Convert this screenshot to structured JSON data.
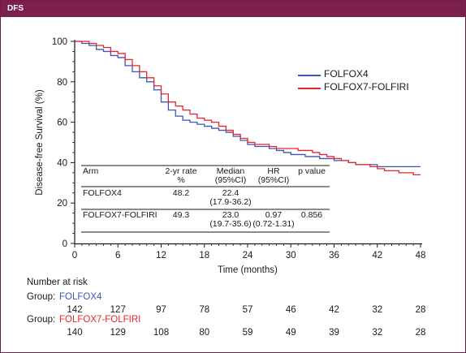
{
  "header": {
    "title": "DFS"
  },
  "colors": {
    "folfox4": "#3e55b8",
    "folfox7": "#e8252c",
    "header_bg": "#7b1f4c",
    "axis": "#1a1a1a"
  },
  "chart_data": {
    "type": "line",
    "subtype": "kaplan-meier step",
    "xlabel": "Time (months)",
    "ylabel": "Disease-free Survival (%)",
    "xlim": [
      0,
      48
    ],
    "ylim": [
      0,
      100
    ],
    "xticks": [
      "0",
      "6",
      "12",
      "18",
      "24",
      "30",
      "36",
      "42",
      "48"
    ],
    "yticks": [
      "0",
      "20",
      "40",
      "60",
      "80",
      "100"
    ],
    "legend_position": "top-right",
    "grid": false,
    "series": [
      {
        "name": "FOLFOX4",
        "color": "#3e55b8",
        "points": [
          [
            0,
            100
          ],
          [
            1,
            99
          ],
          [
            2,
            98
          ],
          [
            3,
            96
          ],
          [
            4,
            95
          ],
          [
            5,
            93
          ],
          [
            6,
            92
          ],
          [
            7,
            88
          ],
          [
            8,
            85
          ],
          [
            9,
            82
          ],
          [
            10,
            80
          ],
          [
            11,
            76
          ],
          [
            12,
            70
          ],
          [
            13,
            66
          ],
          [
            14,
            63
          ],
          [
            15,
            61
          ],
          [
            16,
            60
          ],
          [
            17,
            59
          ],
          [
            18,
            58
          ],
          [
            19,
            57
          ],
          [
            20,
            56
          ],
          [
            21,
            55
          ],
          [
            22,
            53
          ],
          [
            23,
            51
          ],
          [
            24,
            49
          ],
          [
            25,
            48
          ],
          [
            26,
            48
          ],
          [
            27,
            47
          ],
          [
            28,
            46
          ],
          [
            29,
            45
          ],
          [
            30,
            44
          ],
          [
            31,
            44
          ],
          [
            32,
            43
          ],
          [
            33,
            43
          ],
          [
            34,
            42
          ],
          [
            35,
            42
          ],
          [
            36,
            41
          ],
          [
            37,
            41
          ],
          [
            38,
            40
          ],
          [
            39,
            39
          ],
          [
            40,
            39
          ],
          [
            41,
            39
          ],
          [
            42,
            38
          ],
          [
            43,
            38
          ],
          [
            44,
            38
          ],
          [
            45,
            38
          ],
          [
            46,
            38
          ],
          [
            47,
            38
          ],
          [
            48,
            38
          ]
        ]
      },
      {
        "name": "FOLFOX7-FOLFIRI",
        "color": "#e8252c",
        "points": [
          [
            0,
            100
          ],
          [
            1,
            100
          ],
          [
            2,
            99
          ],
          [
            3,
            98
          ],
          [
            4,
            97
          ],
          [
            5,
            95
          ],
          [
            6,
            94
          ],
          [
            7,
            91
          ],
          [
            8,
            88
          ],
          [
            9,
            85
          ],
          [
            10,
            82
          ],
          [
            11,
            78
          ],
          [
            12,
            74
          ],
          [
            13,
            70
          ],
          [
            14,
            68
          ],
          [
            15,
            66
          ],
          [
            16,
            64
          ],
          [
            17,
            62
          ],
          [
            18,
            61
          ],
          [
            19,
            60
          ],
          [
            20,
            58
          ],
          [
            21,
            56
          ],
          [
            22,
            54
          ],
          [
            23,
            52
          ],
          [
            24,
            50
          ],
          [
            25,
            49
          ],
          [
            26,
            49
          ],
          [
            27,
            48
          ],
          [
            28,
            47
          ],
          [
            29,
            47
          ],
          [
            30,
            47
          ],
          [
            31,
            46
          ],
          [
            32,
            46
          ],
          [
            33,
            45
          ],
          [
            34,
            44
          ],
          [
            35,
            43
          ],
          [
            36,
            42
          ],
          [
            37,
            41
          ],
          [
            38,
            40
          ],
          [
            39,
            39
          ],
          [
            40,
            39
          ],
          [
            41,
            38
          ],
          [
            42,
            37
          ],
          [
            43,
            36
          ],
          [
            44,
            36
          ],
          [
            45,
            35
          ],
          [
            46,
            35
          ],
          [
            47,
            34
          ],
          [
            48,
            34
          ]
        ]
      }
    ],
    "legend": [
      {
        "label": "FOLFOX4",
        "color": "#3e55b8"
      },
      {
        "label": "FOLFOX7-FOLFIRI",
        "color": "#e8252c"
      }
    ],
    "table": {
      "headers": [
        "Arm",
        "2-yr rate\n%",
        "Median\n(95%CI)",
        "HR\n(95%CI)",
        "p value"
      ],
      "rows": [
        [
          "FOLFOX4",
          "48.2",
          "22.4\n(17.9-36.2)",
          "",
          ""
        ],
        [
          "FOLFOX7-FOLFIRI",
          "49.3",
          "23.0\n(19.7-35.6)",
          "0.97\n(0.72-1.31)",
          "0.856"
        ]
      ]
    }
  },
  "risk_table": {
    "title": "Number at risk",
    "group_prefix": "Group:",
    "groups": [
      {
        "name": "FOLFOX4",
        "color": "#3e55b8",
        "counts": [
          "142",
          "127",
          "97",
          "78",
          "57",
          "46",
          "42",
          "32",
          "28"
        ]
      },
      {
        "name": "FOLFOX7-FOLFIRI",
        "color": "#e8252c",
        "counts": [
          "140",
          "129",
          "108",
          "80",
          "59",
          "49",
          "39",
          "32",
          "28"
        ]
      }
    ]
  }
}
